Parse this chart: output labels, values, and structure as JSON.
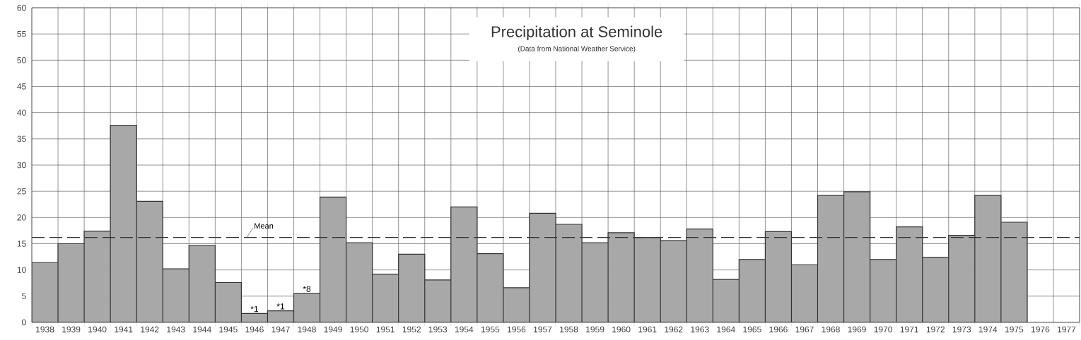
{
  "chart_data": {
    "type": "bar",
    "title": "Precipitation at Seminole",
    "subtitle": "(Data from National Weather Service)",
    "categories": [
      "1938",
      "1939",
      "1940",
      "1941",
      "1942",
      "1943",
      "1944",
      "1945",
      "1946",
      "1947",
      "1948",
      "1949",
      "1950",
      "1951",
      "1952",
      "1953",
      "1954",
      "1955",
      "1956",
      "1957",
      "1958",
      "1959",
      "1960",
      "1961",
      "1962",
      "1963",
      "1964",
      "1965",
      "1966",
      "1967",
      "1968",
      "1969",
      "1970",
      "1971",
      "1972",
      "1973",
      "1974",
      "1975",
      "1976",
      "1977"
    ],
    "values": [
      11.4,
      15.0,
      17.4,
      37.6,
      23.1,
      10.2,
      14.7,
      7.6,
      1.7,
      2.2,
      5.5,
      23.9,
      15.2,
      9.2,
      13.0,
      8.1,
      22.0,
      13.1,
      6.6,
      20.8,
      18.7,
      15.2,
      17.1,
      16.2,
      15.6,
      17.8,
      8.2,
      12.0,
      17.3,
      11.0,
      24.2,
      24.9,
      12.0,
      18.2,
      12.4,
      16.6,
      24.2,
      19.1,
      null,
      null
    ],
    "color": "#a8a8a8",
    "ylim": [
      0,
      60
    ],
    "yticks": [
      0,
      5,
      10,
      15,
      20,
      25,
      30,
      35,
      40,
      45,
      50,
      55,
      60
    ],
    "grid": true,
    "ref_lines": [
      {
        "axis": "y",
        "value": 16.2,
        "label": "Mean",
        "line_style": "dashed",
        "color": "#333333"
      }
    ],
    "annotations": [
      {
        "text": "*1",
        "x": "1946",
        "y": 1.7
      },
      {
        "text": "*1",
        "x": "1947",
        "y": 2.2
      },
      {
        "text": "*8",
        "x": "1948",
        "y": 5.5
      }
    ]
  }
}
